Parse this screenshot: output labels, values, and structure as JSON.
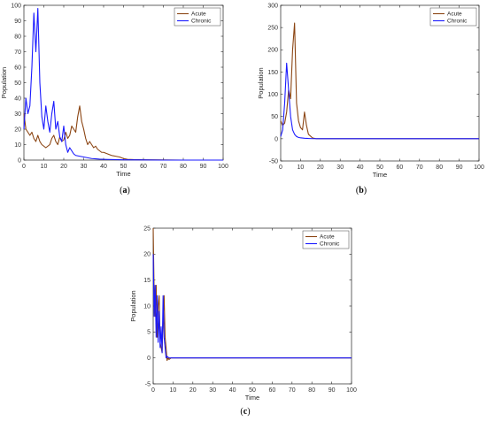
{
  "chart_data": [
    {
      "type": "line",
      "panel_label": "(a)",
      "xlabel": "Time",
      "ylabel": "Population",
      "xlim": [
        0,
        100
      ],
      "ylim": [
        0,
        100
      ],
      "xticks": [
        0,
        10,
        20,
        30,
        40,
        50,
        60,
        70,
        80,
        90,
        100
      ],
      "yticks": [
        0,
        10,
        20,
        30,
        40,
        50,
        60,
        70,
        80,
        90,
        100
      ],
      "legend_position": "top-right",
      "series": [
        {
          "name": "Acute",
          "color": "#8b4513",
          "x": [
            0,
            1,
            2,
            3,
            4,
            5,
            6,
            7,
            8,
            9,
            10,
            11,
            12,
            13,
            14,
            15,
            16,
            17,
            18,
            19,
            20,
            21,
            22,
            23,
            24,
            25,
            26,
            27,
            28,
            29,
            30,
            31,
            32,
            33,
            34,
            35,
            36,
            37,
            38,
            39,
            40,
            42,
            44,
            46,
            48,
            50,
            52,
            55,
            60,
            70,
            80,
            90,
            100
          ],
          "y": [
            30,
            20,
            18,
            16,
            18,
            14,
            12,
            16,
            12,
            10,
            9,
            8,
            9,
            10,
            14,
            16,
            12,
            10,
            15,
            12,
            13,
            18,
            14,
            16,
            22,
            20,
            18,
            28,
            35,
            25,
            20,
            14,
            10,
            12,
            10,
            8,
            9,
            7,
            6,
            5,
            5,
            4,
            3,
            2.5,
            2,
            1,
            0.5,
            0.3,
            0.2,
            0.1,
            0,
            0,
            0
          ]
        },
        {
          "name": "Chronic",
          "color": "#1a1aff",
          "x": [
            0,
            1,
            2,
            3,
            4,
            5,
            6,
            7,
            8,
            9,
            10,
            11,
            12,
            13,
            14,
            15,
            16,
            17,
            18,
            19,
            20,
            21,
            22,
            23,
            24,
            25,
            26,
            28,
            30,
            32,
            34,
            36,
            38,
            40,
            45,
            50,
            60,
            70,
            80,
            90,
            100
          ],
          "y": [
            20,
            40,
            30,
            35,
            60,
            95,
            70,
            98,
            50,
            28,
            20,
            35,
            25,
            18,
            30,
            38,
            20,
            25,
            15,
            12,
            22,
            10,
            5,
            8,
            6,
            4,
            3,
            2.5,
            2,
            1.5,
            1,
            0.8,
            0.6,
            0.5,
            0.3,
            0.2,
            0.1,
            0,
            0,
            0,
            0
          ]
        }
      ]
    },
    {
      "type": "line",
      "panel_label": "(b)",
      "xlabel": "Time",
      "ylabel": "Population",
      "xlim": [
        0,
        100
      ],
      "ylim": [
        -50,
        300
      ],
      "xticks": [
        0,
        10,
        20,
        30,
        40,
        50,
        60,
        70,
        80,
        90,
        100
      ],
      "yticks": [
        -50,
        0,
        50,
        100,
        150,
        200,
        250,
        300
      ],
      "legend_position": "top-right",
      "series": [
        {
          "name": "Acute",
          "color": "#8b4513",
          "x": [
            0,
            1,
            2,
            3,
            4,
            5,
            6,
            7,
            8,
            9,
            10,
            11,
            12,
            13,
            14,
            16,
            18,
            20,
            30,
            50,
            100
          ],
          "y": [
            40,
            30,
            35,
            60,
            110,
            90,
            200,
            260,
            80,
            40,
            25,
            20,
            60,
            30,
            10,
            2,
            0,
            0,
            0,
            0,
            0
          ]
        },
        {
          "name": "Chronic",
          "color": "#1a1aff",
          "x": [
            0,
            1,
            2,
            3,
            4,
            5,
            6,
            7,
            8,
            9,
            10,
            12,
            14,
            16,
            20,
            30,
            50,
            100
          ],
          "y": [
            5,
            20,
            80,
            170,
            110,
            50,
            20,
            10,
            5,
            3,
            2,
            1,
            0.5,
            0.2,
            0,
            0,
            0,
            0
          ]
        }
      ]
    },
    {
      "type": "line",
      "panel_label": "(c)",
      "xlabel": "Time",
      "ylabel": "Population",
      "xlim": [
        0,
        100
      ],
      "ylim": [
        -5,
        25
      ],
      "xticks": [
        0,
        10,
        20,
        30,
        40,
        50,
        60,
        70,
        80,
        90,
        100
      ],
      "yticks": [
        -5,
        0,
        5,
        10,
        15,
        20,
        25
      ],
      "legend_position": "top-right",
      "series": [
        {
          "name": "Acute",
          "color": "#8b4513",
          "x": [
            0,
            0.5,
            1,
            1.5,
            2,
            2.5,
            3,
            3.5,
            4,
            4.5,
            5,
            5.5,
            6,
            6.5,
            7,
            7.5,
            8,
            9,
            10,
            12,
            15,
            20,
            30,
            50,
            100
          ],
          "y": [
            25,
            12,
            8,
            14,
            4,
            10,
            12,
            3,
            2,
            1,
            8,
            12,
            4,
            2,
            -0.5,
            0,
            -0.3,
            0,
            0,
            0,
            0,
            0,
            0,
            0,
            0
          ]
        },
        {
          "name": "Chronic",
          "color": "#1a1aff",
          "x": [
            0,
            0.5,
            1,
            1.5,
            2,
            2.5,
            3,
            3.5,
            4,
            4.5,
            5,
            5.5,
            6,
            6.5,
            7,
            8,
            9,
            10,
            12,
            15,
            20,
            30,
            50,
            100
          ],
          "y": [
            20,
            8,
            14,
            4,
            12,
            3,
            9,
            2,
            6,
            1,
            12,
            4,
            2,
            0,
            0.3,
            0,
            0,
            0,
            0,
            0,
            0,
            0,
            0,
            0
          ]
        }
      ]
    }
  ]
}
